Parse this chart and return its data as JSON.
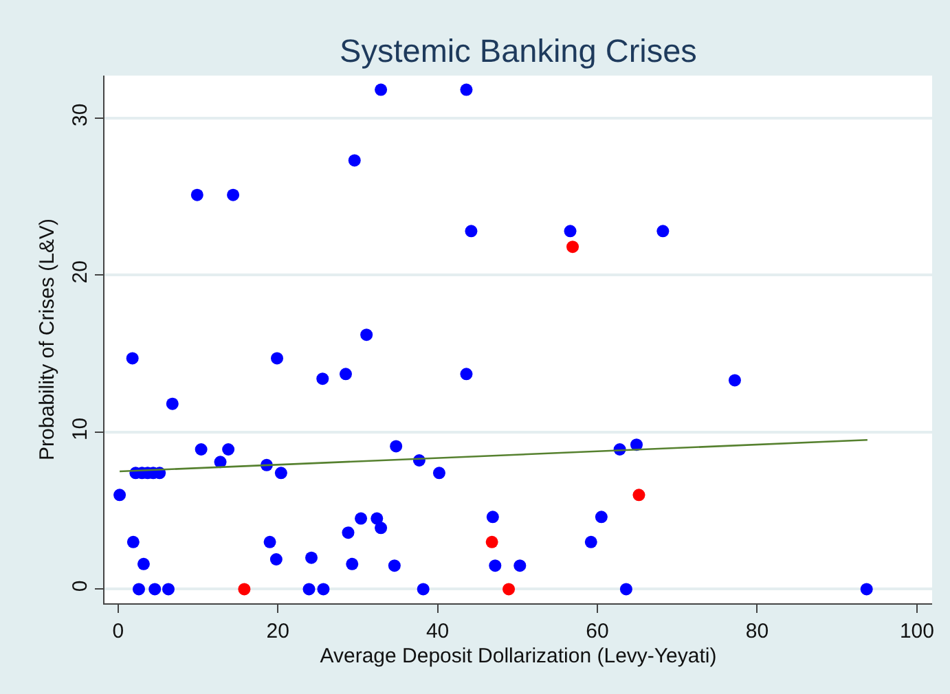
{
  "chart_data": {
    "type": "scatter",
    "title": "Systemic Banking Crises",
    "xlabel": "Average Deposit Dollarization (Levy-Yeyati)",
    "ylabel": "Probability of Crises (L&V)",
    "xlim": [
      -1.7,
      101.9
    ],
    "ylim": [
      -0.9,
      32.7
    ],
    "xticks": [
      0,
      20,
      40,
      60,
      80,
      100
    ],
    "yticks": [
      0,
      10,
      20,
      30
    ],
    "grid": "y",
    "marker": "circle",
    "series": [
      {
        "color": "#0000ff",
        "x": [
          0.2,
          1.8,
          1.9,
          2.2,
          2.6,
          3.0,
          3.2,
          3.7,
          4.4,
          4.6,
          5.2,
          6.3,
          6.8,
          9.9,
          10.4,
          12.8,
          13.8,
          14.4,
          18.6,
          19.0,
          19.8,
          19.9,
          20.4,
          23.9,
          24.2,
          25.6,
          25.7,
          28.5,
          28.8,
          29.3,
          29.6,
          30.4,
          31.1,
          32.4,
          32.9,
          32.9,
          34.6,
          34.8,
          37.7,
          38.2,
          40.2,
          43.6,
          43.6,
          44.2,
          46.9,
          47.2,
          50.3,
          56.6,
          59.2,
          60.5,
          62.8,
          63.6,
          64.9,
          68.2,
          77.2,
          93.7
        ],
        "values": [
          6.0,
          14.7,
          3.0,
          7.4,
          0,
          7.4,
          1.6,
          7.4,
          7.4,
          0,
          7.4,
          0,
          11.8,
          25.1,
          8.9,
          8.1,
          8.9,
          25.1,
          7.9,
          3.0,
          1.9,
          14.7,
          7.4,
          0,
          2.0,
          13.4,
          0,
          13.7,
          3.6,
          1.6,
          27.3,
          4.5,
          16.2,
          4.5,
          31.8,
          3.9,
          1.5,
          9.1,
          8.2,
          0,
          7.4,
          31.8,
          13.7,
          22.8,
          4.6,
          1.5,
          1.5,
          22.8,
          3.0,
          4.6,
          8.9,
          0,
          9.2,
          22.8,
          13.3,
          0
        ]
      },
      {
        "color": "#ff0000",
        "x": [
          15.8,
          46.8,
          48.9,
          56.9,
          65.2
        ],
        "values": [
          0,
          3.0,
          0,
          21.8,
          6.0
        ]
      },
      {
        "type": "line",
        "marker": "none",
        "color": "#56812f",
        "x": [
          0.2,
          93.8
        ],
        "values": [
          7.5,
          9.5
        ]
      }
    ]
  }
}
